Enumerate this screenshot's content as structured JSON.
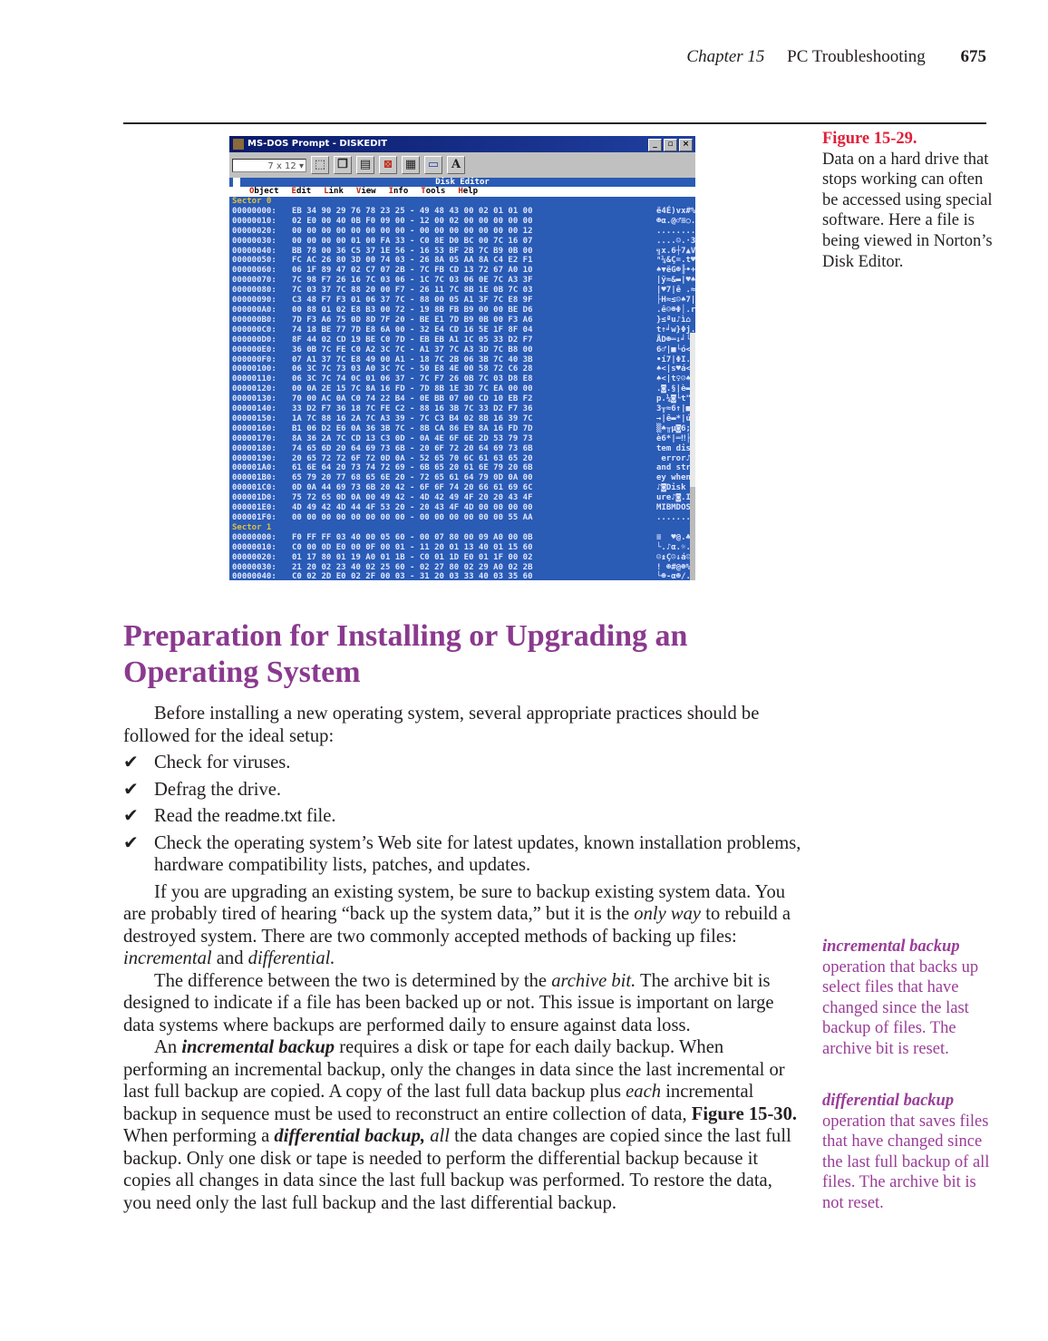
{
  "running_head": {
    "chapter": "Chapter 15",
    "title": "PC Troubleshooting",
    "page": "675"
  },
  "figure": {
    "label": "Figure 15-29.",
    "caption": "Data on a hard drive that stops working can often be accessed using special software. Here a file is being viewed in Norton’s Disk Editor.",
    "window": {
      "title": "MS-DOS Prompt - DISKEDIT",
      "font_size": "7 x 12",
      "toolbar_a": "A",
      "app_title": "Disk Editor",
      "menu": [
        "Object",
        "Edit",
        "Link",
        "View",
        "Info",
        "Tools",
        "Help"
      ],
      "sectors": [
        {
          "label": "Sector 0",
          "rows": [
            [
              "00000000:",
              "EB 34 90 29 76 78 23 25 - 49 48 43 00 02 01 01 00",
              "ë4É)vx#%IHC.☻☺☺."
            ],
            [
              "00000010:",
              "02 E0 00 40 0B F0 09 00 - 12 00 02 00 00 00 00 00",
              "☻α.@♂≡○.↕.☻....."
            ],
            [
              "00000020:",
              "00 00 00 00 00 00 00 00 - 00 00 00 00 00 00 00 12",
              "...............↕"
            ],
            [
              "00000030:",
              "00 00 00 00 01 00 FA 33 - C0 8E D0 BC 00 7C 16 07",
              "....☺.·3└Ä╨╝.|▬•"
            ],
            [
              "00000040:",
              "BB 78 00 36 C5 37 1E 56 - 16 53 BF 2B 7C B9 0B 00",
              "╗x.6┼7▲V▬S┐+|╣♂."
            ],
            [
              "00000050:",
              "FC AC 26 80 3D 00 74 03 - 26 8A 05 AA 8A C4 E2 F1",
              "ⁿ¼&Ç=.t♥&è♣¬è─Γ±"
            ],
            [
              "00000060:",
              "06 1F 89 47 02 C7 07 2B - 7C FB CD 13 72 67 A0 10",
              "♠▼ëG☻╟•+|√═‼rgá►"
            ],
            [
              "00000070:",
              "7C 98 F7 26 16 7C 03 06 - 1C 7C 03 06 0E 7C A3 3F",
              "|ÿ≈&▬|♥♠∟|♥♠♫|ú?"
            ],
            [
              "00000080:",
              "7C 03 37 7C 88 20 00 F7 - 26 11 7C 8B 1E 0B 7C 03",
              "|♥7|ê .≈&◄|ï▲♂|♥"
            ],
            [
              "00000090:",
              "C3 48 F7 F3 01 06 37 7C - 88 00 05 A1 3F 7C E8 9F",
              "├H≈≤☺♠7|ê.♣í?|Φƒ"
            ],
            [
              "000000A0:",
              "00 88 01 02 E8 B3 00 72 - 19 8B FB B9 00 00 BE D6",
              ".ê☺☻Φ│.r↓ï√╣..╛╓"
            ],
            [
              "000000B0:",
              "7D F3 A6 75 0D 8D 7F 20 - BE E1 7D B9 0B 00 F3 A6",
              "}≤ªu♪ì⌂ ╛ß}╣♂.≤ª"
            ],
            [
              "000000C0:",
              "74 18 BE 77 7D E8 6A 00 - 32 E4 CD 16 5E 1F 8F 04",
              "t↑╛w}Φj.2Σ═▬^▼Å♦"
            ],
            [
              "000000D0:",
              "8F 44 02 CD 19 BE C0 7D - EB EB A1 1C 05 33 D2 F7",
              "ÅD☻═↓╛└}δδí∟♣3╥≈"
            ],
            [
              "000000E0:",
              "36 0B 7C FE C0 A2 3C 7C - A1 37 7C A3 3D 7C B8 00",
              "6♂|■└ó<|í7|ú=|╕."
            ],
            [
              "000000F0:",
              "07 A1 37 7C E8 49 00 A1 - 18 7C 2B 06 3B 7C 40 3B",
              "•í7|ΦI.í↑|+♠;|@;"
            ],
            [
              "00000100:",
              "06 3C 7C 73 03 A0 3C 7C - 50 E8 4E 00 58 72 C6 28",
              "♠<|s♥á<|PΦN.Xr╞("
            ],
            [
              "00000110:",
              "06 3C 7C 74 0C 01 06 37 - 7C F7 26 0B 7C 03 D8 E8",
              "♠<|t♀☺♠7|≈&♂|♥╪Φ"
            ],
            [
              "00000120:",
              "00 0A 2E 15 7C 8A 16 FD - 7D 8B 1E 3D 7C EA 00 00",
              ".◙.§|è▬²}ï▲=|Ω.."
            ],
            [
              "00000130:",
              "70 00 AC 0A C0 74 22 B4 - 0E BB 07 00 CD 10 EB F2",
              "p.¼◙└t\"┤♫╗•.═►δ≥"
            ],
            [
              "00000140:",
              "33 D2 F7 36 18 7C FE C2 - 88 16 3B 7C 33 D2 F7 36",
              "3╥≈6↑|■┬ê▬;|3╥≈6"
            ],
            [
              "00000150:",
              "1A 7C 88 16 2A 7C A3 39 - 7C C3 B4 02 8B 16 39 7C",
              "→|ê▬*|ú9|├┤☻ï▬9|"
            ],
            [
              "00000160:",
              "B1 06 D2 E6 0A 36 3B 7C - 8B CA 86 E9 8A 16 FD 7D",
              "▒♠╥µ◙6;|ï╩åΘè▬²}"
            ],
            [
              "00000170:",
              "8A 36 2A 7C CD 13 C3 0D - 0A 4E 6F 6E 2D 53 79 73",
              "è6*|═‼├♪◙Non-Sys"
            ],
            [
              "00000180:",
              "74 65 6D 20 64 69 73 6B - 20 6F 72 20 64 69 73 6B",
              "tem disk or disk"
            ],
            [
              "00000190:",
              "20 65 72 72 6F 72 0D 0A - 52 65 70 6C 61 63 65 20",
              " error♪◙Replace "
            ],
            [
              "000001A0:",
              "61 6E 64 20 73 74 72 69 - 6B 65 20 61 6E 79 20 6B",
              "and strike any k"
            ],
            [
              "000001B0:",
              "65 79 20 77 68 65 6E 20 - 72 65 61 64 79 0D 0A 00",
              "ey when ready♪◙."
            ],
            [
              "000001C0:",
              "0D 0A 44 69 73 6B 20 42 - 6F 6F 74 20 66 61 69 6C",
              "♪◙Disk Boot fail"
            ],
            [
              "000001D0:",
              "75 72 65 0D 0A 00 49 42 - 4D 42 49 4F 20 20 43 4F",
              "ure♪◙.IBMBIO  CO"
            ],
            [
              "000001E0:",
              "4D 49 42 4D 44 4F 53 20 - 20 43 4F 4D 00 00 00 00",
              "MIBMDOS  COM...."
            ],
            [
              "000001F0:",
              "00 00 00 00 00 00 00 00 - 00 00 00 00 00 00 55 AA",
              "..............U¬"
            ]
          ]
        },
        {
          "label": "Sector 1",
          "rows": [
            [
              "00000000:",
              "F0 FF FF 03 40 00 05 60 - 00 07 80 00 09 A0 00 0B",
              "≡  ♥@.♣`.•Ç.○á.♂"
            ],
            [
              "00000010:",
              "C0 00 0D E0 00 0F 00 01 - 11 20 01 13 40 01 15 60",
              "└.♪α.☼.☺◄ ☺‼@☺§`"
            ],
            [
              "00000020:",
              "01 17 80 01 19 A0 01 1B - C0 01 1D E0 01 1F 00 02",
              "☺↨Ç☺↓á☺←└☺↔α☺▼.☻"
            ],
            [
              "00000030:",
              "21 20 02 23 40 02 25 60 - 02 27 80 02 29 A0 02 2B",
              "! ☻#@☻%`☻'Ç☻)á☻+"
            ],
            [
              "00000040:",
              "C0 02 2D E0 02 2F 00 03 - 31 20 03 33 40 03 35 60",
              "└☻-α☻/.♥1 ♥3@♥5`"
            ]
          ]
        }
      ]
    }
  },
  "section_heading": "Preparation for Installing or Upgrading an Operating System",
  "body": {
    "intro": "Before installing a new operating system, several appropriate practices should be followed for the ideal setup:",
    "checklist": [
      [
        {
          "t": "Check for viruses."
        }
      ],
      [
        {
          "t": "Defrag the drive."
        }
      ],
      [
        {
          "t": "Read the "
        },
        {
          "t": "readme.txt",
          "s": "sans"
        },
        {
          "t": " file."
        }
      ],
      [
        {
          "t": "Check the operating system’s Web site for latest updates, known installation problems, hardware compatibility lists, patches, and updates."
        }
      ]
    ],
    "paragraphs": [
      [
        {
          "t": "If you are upgrading an existing system, be sure to backup existing system data. You are probably tired of hearing “back up the system data,” but it is the "
        },
        {
          "t": "only way",
          "s": "i"
        },
        {
          "t": " to rebuild a destroyed system. There are two commonly accepted methods of backing up files: "
        },
        {
          "t": "incremental",
          "s": "i"
        },
        {
          "t": " and "
        },
        {
          "t": "differential.",
          "s": "i"
        }
      ],
      [
        {
          "t": "The difference between the two is determined by the "
        },
        {
          "t": "archive bit.",
          "s": "i"
        },
        {
          "t": " The archive bit is designed to indicate if a file has been backed up or not. This issue is important on large data systems where backups are performed daily to ensure against data loss."
        }
      ],
      [
        {
          "t": "An "
        },
        {
          "t": "incremental backup",
          "s": "bi"
        },
        {
          "t": " requires a disk or tape for each daily backup. When performing an incremental backup, only the changes in data since the last incremental or last full backup are copied. A copy of the last full data backup plus "
        },
        {
          "t": "each",
          "s": "i"
        },
        {
          "t": " incremental backup in sequence must be used to reconstruct an entire collection of data, "
        },
        {
          "t": "Figure 15-30.",
          "s": "b"
        },
        {
          "t": " When performing a "
        },
        {
          "t": "differential backup,",
          "s": "bi"
        },
        {
          "t": " "
        },
        {
          "t": "all",
          "s": "i"
        },
        {
          "t": " the data changes are copied since the last full backup. Only one disk or tape is needed to perform the differential backup because it copies all changes in data since the last full backup was performed. To restore the data, you need only the last full backup and the last differential backup."
        }
      ]
    ]
  },
  "glossary": [
    {
      "term": "incremental backup",
      "definition": "operation that backs up select files that have changed since the last backup of files. The archive bit is reset."
    },
    {
      "term": "differential backup",
      "definition": "operation that saves files that have changed since the last full backup of all files. The archive bit is not reset."
    }
  ],
  "colors": {
    "heading": "#8a3a8e",
    "figure_label": "#e0203a",
    "glossary": "#9a3d98",
    "dos_blue": "#2a5bb5"
  }
}
